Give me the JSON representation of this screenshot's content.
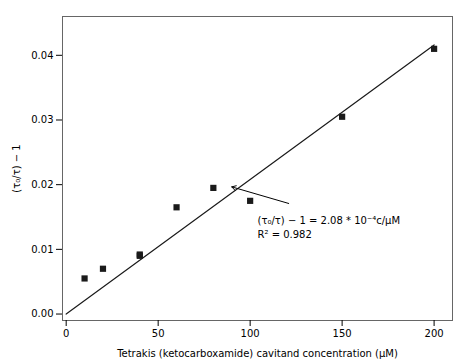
{
  "chart_data": {
    "type": "scatter",
    "xlabel": "Tetrakis (ketocarboxamide) cavitand concentration (μM)",
    "ylabel": "(τ₀/τ) − 1",
    "series": [
      {
        "type": "scatter",
        "marker": "square",
        "color": "#1a1a1a",
        "x": [
          10,
          20,
          40,
          40,
          60,
          80,
          100,
          150,
          200
        ],
        "values": [
          0.0055,
          0.007,
          0.009,
          0.0092,
          0.0165,
          0.0195,
          0.0175,
          0.0305,
          0.041
        ]
      },
      {
        "type": "line",
        "line_style": "solid",
        "color": "#1a1a1a",
        "x": [
          0,
          200
        ],
        "values": [
          0.0,
          0.0416
        ]
      }
    ],
    "xlim": [
      -2,
      210
    ],
    "ylim": [
      -0.001,
      0.046
    ],
    "xticks": [
      0,
      50,
      100,
      150,
      200
    ],
    "yticks": [
      {
        "value": 0,
        "label": "0.00"
      },
      {
        "value": 0.01,
        "label": "0.01"
      },
      {
        "value": 0.02,
        "label": "0.02"
      },
      {
        "value": 0.03,
        "label": "0.03"
      },
      {
        "value": 0.04,
        "label": "0.04"
      }
    ],
    "annotations": [
      "(τ₀/τ) − 1 = 2.08 * 10⁻⁴c/μM",
      "R² = 0.982"
    ],
    "grid": false
  }
}
